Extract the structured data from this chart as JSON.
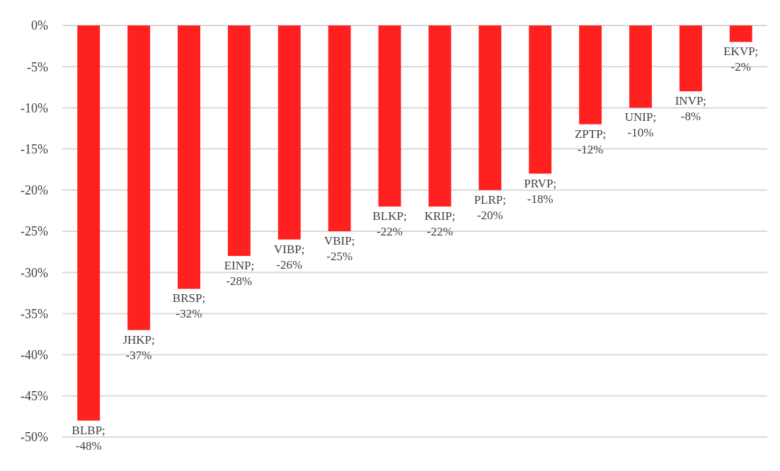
{
  "chart_data": {
    "type": "bar",
    "categories": [
      null,
      null,
      null,
      null,
      null,
      null,
      null,
      null,
      null,
      null,
      null,
      null,
      null,
      null
    ],
    "values": [
      -48,
      -37,
      -32,
      -28,
      -26,
      -25,
      -22,
      -22,
      -20,
      -18,
      -12,
      -10,
      -8,
      -2
    ],
    "value_labels": [
      "BLBP; -48%",
      "JHKP; -37%",
      "BRSP; -32%",
      "EINP; -28%",
      "VIBP; -26%",
      "VBIP; -25%",
      "BLKP; -22%",
      "KRIP; -22%",
      "PLRP; -20%",
      "PRVP; -18%",
      "ZPTP; -12%",
      "UNIP; -10%",
      "INVP; -8%",
      "EKVP; -2%"
    ],
    "color": "#ff2020",
    "ylim": [
      -50,
      0
    ],
    "yticks": [
      {
        "value": 0,
        "label": "0%"
      },
      {
        "value": -5,
        "label": "-5%"
      },
      {
        "value": -10,
        "label": "-10%"
      },
      {
        "value": -15,
        "label": "-15%"
      },
      {
        "value": -20,
        "label": "-20%"
      },
      {
        "value": -25,
        "label": "-25%"
      },
      {
        "value": -30,
        "label": "-30%"
      },
      {
        "value": -35,
        "label": "-35%"
      },
      {
        "value": -40,
        "label": "-40%"
      },
      {
        "value": -45,
        "label": "-45%"
      },
      {
        "value": -50,
        "label": "-50%"
      }
    ],
    "grid": "y",
    "tick_labels": "y"
  }
}
